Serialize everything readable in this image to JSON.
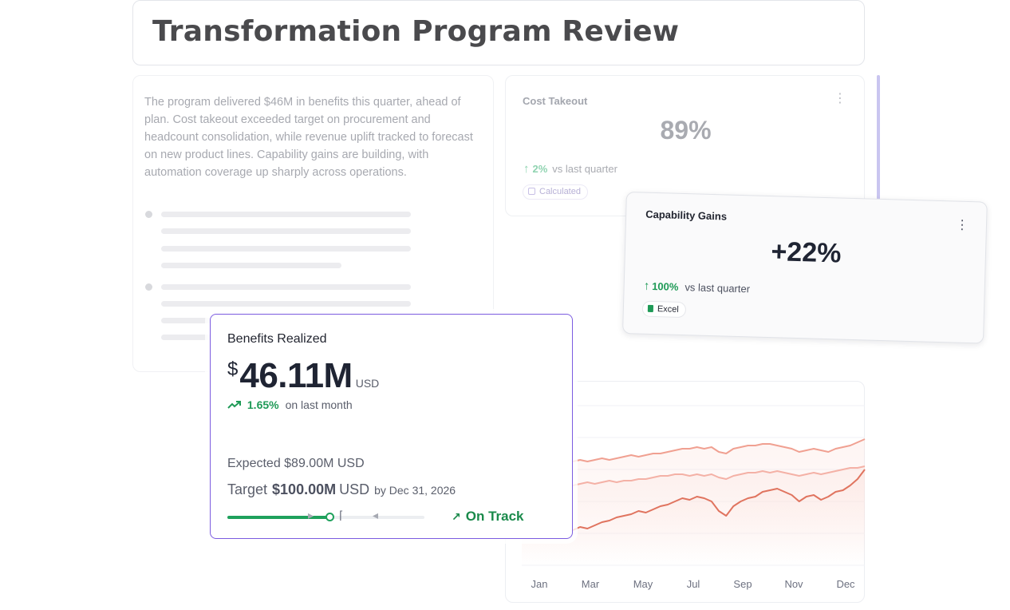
{
  "title": "Transformation Program Review",
  "summary": {
    "text": "The program delivered $46M in benefits this quarter, ahead of plan. Cost takeout exceeded target on procurement and headcount consolidation, while revenue uplift tracked to forecast on new product lines. Capability gains are building, with automation coverage up sharply across operations."
  },
  "cost_takeout": {
    "title": "Cost Takeout",
    "value": "89%",
    "delta": "2%",
    "delta_suffix": "vs last quarter",
    "badge": "Calculated",
    "menu_icon": "more-vertical-icon"
  },
  "capability_gains": {
    "title": "Capability Gains",
    "value": "+22%",
    "delta": "100%",
    "delta_suffix": "vs last quarter",
    "badge": "Excel",
    "menu_icon": "more-vertical-icon"
  },
  "benefits": {
    "title": "Benefits Realized",
    "currency": "$",
    "value": "46.11M",
    "unit": "USD",
    "delta": "1.65%",
    "delta_suffix": "on last month",
    "expected": "Expected $89.00M USD",
    "target_label": "Target",
    "target_amount": "$100.00M",
    "target_currency": "USD",
    "target_by": "by Dec 31, 2026",
    "progress": 0.52,
    "status": "On Track",
    "colors": {
      "accent": "#7b5ce0",
      "positive": "#1fa15c"
    }
  },
  "chart_data": {
    "type": "line",
    "x_tick_labels": [
      "Jan",
      "Mar",
      "May",
      "Jul",
      "Sep",
      "Nov",
      "Dec"
    ],
    "grid": true,
    "series": [
      {
        "values": [
          63,
          64,
          64,
          63,
          64,
          65,
          64,
          65,
          66,
          65,
          66,
          67,
          66,
          67,
          68,
          69,
          68,
          69,
          70,
          70,
          71,
          72,
          73,
          73,
          74,
          73,
          74,
          71,
          70,
          73,
          74,
          75,
          75,
          76,
          76,
          75,
          74,
          73,
          71,
          72,
          73,
          72,
          71,
          73,
          74,
          75,
          77,
          79
        ],
        "color": "#f0a091"
      },
      {
        "values": [
          49,
          50,
          49,
          50,
          51,
          50,
          51,
          50,
          51,
          52,
          51,
          52,
          53,
          52,
          53,
          53,
          54,
          54,
          55,
          56,
          56,
          57,
          57,
          56,
          57,
          56,
          57,
          55,
          54,
          56,
          57,
          58,
          58,
          59,
          58,
          59,
          58,
          57,
          56,
          57,
          58,
          57,
          58,
          59,
          60,
          61,
          61,
          62
        ],
        "color": "#f4b1a6"
      },
      {
        "values": [
          18,
          20,
          21,
          19,
          20,
          21,
          20,
          22,
          24,
          23,
          25,
          27,
          28,
          30,
          31,
          32,
          34,
          33,
          35,
          37,
          38,
          40,
          42,
          41,
          43,
          42,
          40,
          34,
          31,
          37,
          40,
          42,
          43,
          46,
          47,
          48,
          46,
          44,
          40,
          43,
          44,
          41,
          43,
          46,
          47,
          50,
          54,
          60
        ],
        "color": "#e0745f"
      }
    ],
    "ylim": [
      0,
      100
    ]
  }
}
